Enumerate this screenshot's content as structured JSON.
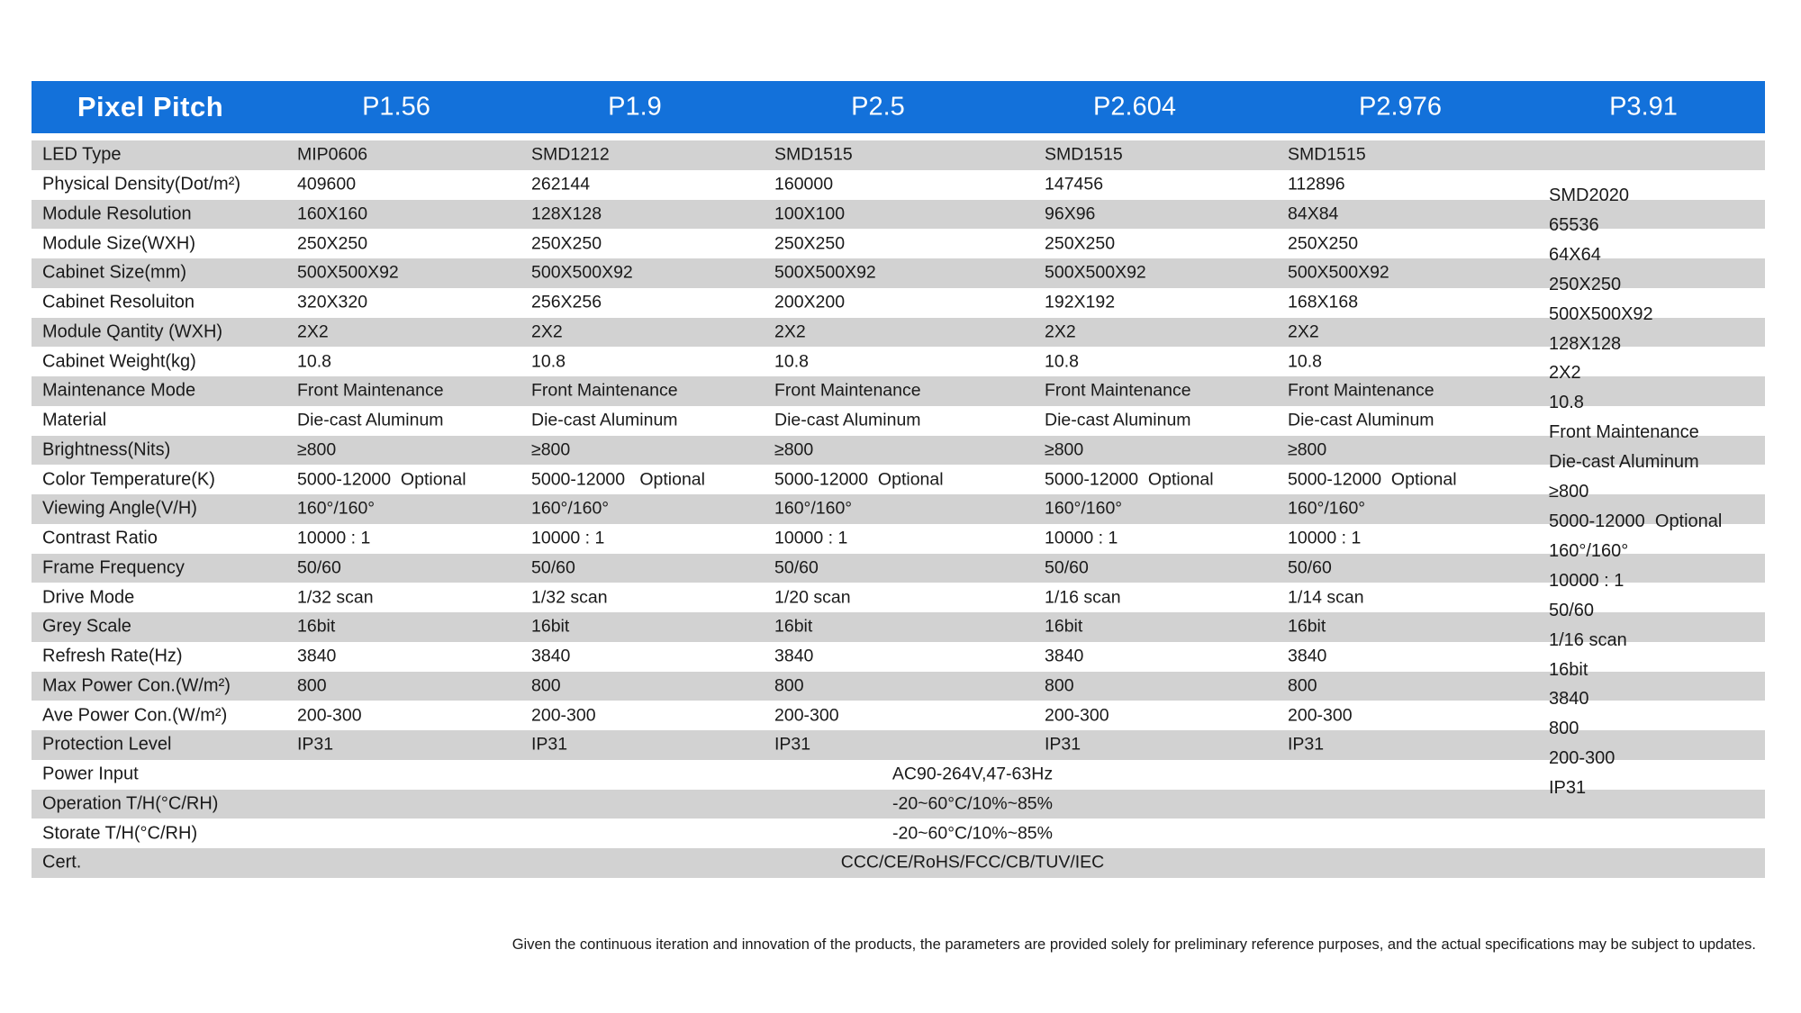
{
  "header": {
    "corner_label": "Pixel Pitch",
    "columns": [
      "P1.56",
      "P1.9",
      "P2.5",
      "P2.604",
      "P2.976",
      "P3.91"
    ]
  },
  "rows": [
    {
      "label": "LED Type",
      "values": [
        "MIP0606",
        "SMD1212",
        "SMD1515",
        "SMD1515",
        "SMD1515"
      ]
    },
    {
      "label": "Physical Density(Dot/m²)",
      "values": [
        "409600",
        "262144",
        "160000",
        "147456",
        "112896"
      ]
    },
    {
      "label": "Module Resolution",
      "values": [
        "160X160",
        "128X128",
        "100X100",
        "96X96",
        "84X84"
      ]
    },
    {
      "label": "Module Size(WXH)",
      "values": [
        "250X250",
        "250X250",
        "250X250",
        "250X250",
        "250X250"
      ]
    },
    {
      "label": "Cabinet Size(mm)",
      "values": [
        "500X500X92",
        "500X500X92",
        "500X500X92",
        "500X500X92",
        "500X500X92"
      ]
    },
    {
      "label": "Cabinet Resoluiton",
      "values": [
        "320X320",
        "256X256",
        "200X200",
        "192X192",
        "168X168"
      ]
    },
    {
      "label": "Module Qantity (WXH)",
      "values": [
        "2X2",
        "2X2",
        "2X2",
        "2X2",
        "2X2"
      ]
    },
    {
      "label": "Cabinet Weight(kg)",
      "values": [
        "10.8",
        "10.8",
        "10.8",
        "10.8",
        "10.8"
      ]
    },
    {
      "label": "Maintenance Mode",
      "values": [
        "Front Maintenance",
        "Front Maintenance",
        "Front Maintenance",
        "Front Maintenance",
        "Front Maintenance"
      ]
    },
    {
      "label": "Material",
      "values": [
        "Die-cast Aluminum",
        "Die-cast Aluminum",
        "Die-cast Aluminum",
        "Die-cast Aluminum",
        "Die-cast Aluminum"
      ]
    },
    {
      "label": "Brightness(Nits)",
      "values": [
        "≥800",
        "≥800",
        "≥800",
        "≥800",
        "≥800"
      ]
    },
    {
      "label": "Color Temperature(K)",
      "values": [
        "5000-12000  Optional",
        "5000-12000   Optional",
        "5000-12000  Optional",
        "5000-12000  Optional",
        "5000-12000  Optional"
      ]
    },
    {
      "label": "Viewing Angle(V/H)",
      "values": [
        "160°/160°",
        "160°/160°",
        "160°/160°",
        "160°/160°",
        "160°/160°"
      ]
    },
    {
      "label": "Contrast Ratio",
      "values": [
        "10000 : 1",
        "10000 : 1",
        "10000 : 1",
        "10000 : 1",
        "10000 : 1"
      ]
    },
    {
      "label": "Frame Frequency",
      "values": [
        "50/60",
        "50/60",
        "50/60",
        "50/60",
        "50/60"
      ]
    },
    {
      "label": "Drive Mode",
      "values": [
        "1/32 scan",
        "1/32 scan",
        "1/20 scan",
        "1/16 scan",
        "1/14 scan"
      ]
    },
    {
      "label": "Grey Scale",
      "values": [
        "16bit",
        "16bit",
        "16bit",
        "16bit",
        "16bit"
      ]
    },
    {
      "label": "Refresh Rate(Hz)",
      "values": [
        "3840",
        "3840",
        "3840",
        "3840",
        "3840"
      ]
    },
    {
      "label": "Max Power Con.(W/m²)",
      "values": [
        "800",
        "800",
        "800",
        "800",
        "800"
      ]
    },
    {
      "label": "Ave Power Con.(W/m²)",
      "values": [
        "200-300",
        "200-300",
        "200-300",
        "200-300",
        "200-300"
      ]
    },
    {
      "label": "Protection Level",
      "values": [
        "IP31",
        "IP31",
        "IP31",
        "IP31",
        "IP31"
      ]
    },
    {
      "label": "Power Input",
      "shared_value": "AC90-264V,47-63Hz"
    },
    {
      "label": "Operation T/H(°C/RH)",
      "shared_value": "-20~60°C/10%~85%"
    },
    {
      "label": "Storate T/H(°C/RH)",
      "shared_value": "-20~60°C/10%~85%"
    },
    {
      "label": "Cert.",
      "shared_value": "CCC/CE/RoHS/FCC/CB/TUV/IEC"
    }
  ],
  "p391_column": [
    "SMD2020",
    "65536",
    "64X64",
    "250X250",
    "500X500X92",
    "128X128",
    "2X2",
    "10.8",
    "Front Maintenance",
    "Die-cast Aluminum",
    "≥800",
    "5000-12000  Optional",
    "160°/160°",
    "10000 : 1",
    "50/60",
    "1/16 scan",
    "16bit",
    "3840",
    "800",
    "200-300",
    "IP31"
  ],
  "footer": {
    "disclaimer": "Given the continuous iteration and innovation of the products, the parameters are provided solely for preliminary reference purposes, and the actual specifications may be subject to updates."
  },
  "colors": {
    "header_blue": "#1371da",
    "stripe_gray": "#d2d2d2",
    "text": "#1a1a1a"
  }
}
